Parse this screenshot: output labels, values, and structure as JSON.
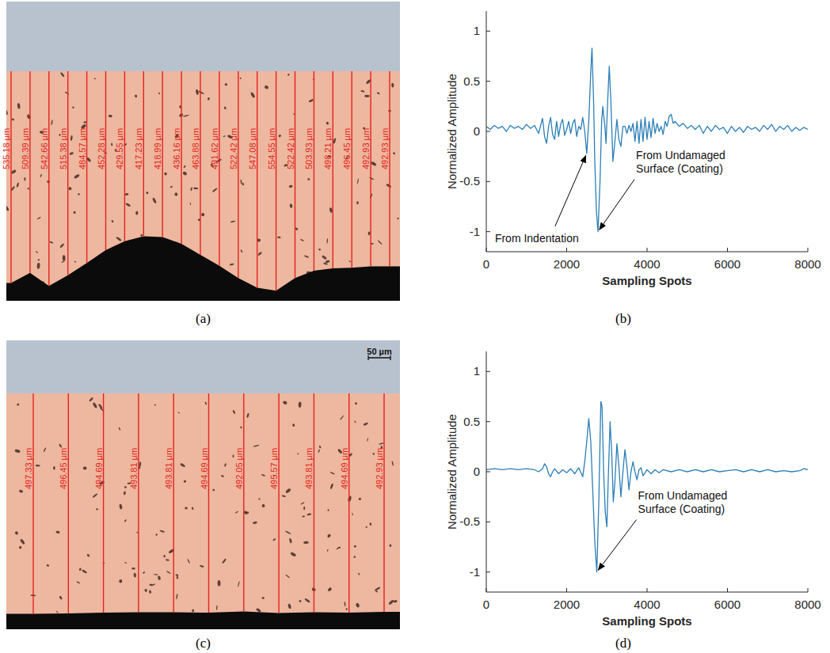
{
  "micrographs": [
    {
      "label": "(a)",
      "thicknesses": [
        {
          "value": 535.18,
          "label": "535.18 µm"
        },
        {
          "value": 509.39,
          "label": "509.39 µm"
        },
        {
          "value": 542.66,
          "label": "542.66 µm"
        },
        {
          "value": 515.38,
          "label": "515.38 µm"
        },
        {
          "value": 484.57,
          "label": "484.57 µm"
        },
        {
          "value": 452.28,
          "label": "452.28 µm"
        },
        {
          "value": 429.55,
          "label": "429.55 µm"
        },
        {
          "value": 417.23,
          "label": "417.23 µm"
        },
        {
          "value": 418.99,
          "label": "418.99 µm"
        },
        {
          "value": 436.16,
          "label": "436.16 µm"
        },
        {
          "value": 463.88,
          "label": "463.88 µm"
        },
        {
          "value": 491.62,
          "label": "491.62 µm"
        },
        {
          "value": 522.42,
          "label": "522.42 µm"
        },
        {
          "value": 547.08,
          "label": "547.08 µm"
        },
        {
          "value": 554.55,
          "label": "554.55 µm"
        },
        {
          "value": 522.42,
          "label": "522.42 µm"
        },
        {
          "value": 503.93,
          "label": "503.93 µm"
        },
        {
          "value": 498.21,
          "label": "498.21 µm"
        },
        {
          "value": 496.45,
          "label": "496.45 µm"
        },
        {
          "value": 492.93,
          "label": "492.93 µm"
        },
        {
          "value": 492.93,
          "label": "492.93 µm"
        }
      ]
    },
    {
      "label": "(c)",
      "scale_bar": {
        "value": 50,
        "label": "50 µm"
      },
      "thicknesses": [
        {
          "value": 497.33,
          "label": "497.33 µm"
        },
        {
          "value": 496.45,
          "label": "496.45 µm"
        },
        {
          "value": 494.69,
          "label": "494.69 µm"
        },
        {
          "value": 493.81,
          "label": "493.81 µm"
        },
        {
          "value": 493.81,
          "label": "493.81 µm"
        },
        {
          "value": 494.69,
          "label": "494.69 µm"
        },
        {
          "value": 492.05,
          "label": "492.05 µm"
        },
        {
          "value": 495.57,
          "label": "495.57 µm"
        },
        {
          "value": 493.81,
          "label": "493.81 µm"
        },
        {
          "value": 494.69,
          "label": "494.69 µm"
        },
        {
          "value": 492.93,
          "label": "492.93 µm"
        }
      ]
    }
  ],
  "chart_data": [
    {
      "type": "line",
      "label": "(b)",
      "x_label": "Sampling Spots",
      "y_label": "Normalized Amplitude",
      "xlim": [
        0,
        8000
      ],
      "xticks": [
        0,
        2000,
        4000,
        6000,
        8000
      ],
      "ylim": [
        -1.2,
        1.2
      ],
      "yticks": [
        -1,
        -0.5,
        0,
        0.5,
        1
      ],
      "grid": false,
      "x": [
        0,
        100,
        200,
        300,
        400,
        500,
        600,
        700,
        800,
        900,
        1000,
        1100,
        1200,
        1300,
        1400,
        1450,
        1500,
        1550,
        1600,
        1650,
        1700,
        1750,
        1800,
        1850,
        1900,
        1950,
        2000,
        2050,
        2100,
        2150,
        2200,
        2250,
        2300,
        2350,
        2400,
        2450,
        2500,
        2550,
        2600,
        2630,
        2670,
        2700,
        2740,
        2780,
        2830,
        2870,
        2900,
        2950,
        2980,
        3020,
        3060,
        3100,
        3150,
        3200,
        3250,
        3300,
        3350,
        3400,
        3450,
        3500,
        3550,
        3600,
        3650,
        3700,
        3750,
        3800,
        3850,
        3900,
        3950,
        4000,
        4050,
        4100,
        4150,
        4200,
        4250,
        4300,
        4350,
        4400,
        4450,
        4500,
        4550,
        4600,
        4650,
        4700,
        4800,
        4900,
        5000,
        5100,
        5200,
        5300,
        5400,
        5500,
        5600,
        5700,
        5800,
        5900,
        6000,
        6100,
        6200,
        6300,
        6400,
        6500,
        6600,
        6700,
        6800,
        6900,
        7000,
        7100,
        7200,
        7300,
        7400,
        7500,
        7600,
        7700,
        7800,
        7900,
        8000
      ],
      "series": [
        {
          "color": "#2c7fb8",
          "values": [
            0.05,
            0.02,
            0.06,
            0.03,
            0.05,
            0.0,
            0.06,
            0.03,
            0.05,
            0.02,
            0.07,
            0.03,
            0.06,
            -0.02,
            0.13,
            -0.05,
            -0.12,
            0.05,
            0.14,
            -0.03,
            -0.08,
            0.1,
            -0.05,
            0.07,
            0.12,
            -0.04,
            0.02,
            0.1,
            -0.02,
            0.08,
            0.12,
            -0.05,
            0.05,
            0.02,
            0.14,
            0.0,
            -0.22,
            0.1,
            0.6,
            0.83,
            0.3,
            -0.3,
            -0.8,
            -1.0,
            -0.5,
            0.1,
            0.25,
            0.05,
            -0.12,
            0.3,
            0.65,
            0.3,
            -0.3,
            -0.1,
            0.12,
            -0.08,
            -0.15,
            0.05,
            0.05,
            -0.02,
            0.06,
            0.0,
            0.08,
            -0.1,
            0.1,
            -0.12,
            0.12,
            -0.1,
            0.14,
            -0.08,
            0.1,
            -0.06,
            0.13,
            -0.02,
            0.08,
            0.0,
            0.05,
            -0.03,
            0.1,
            0.05,
            0.15,
            0.17,
            0.08,
            0.1,
            0.05,
            0.08,
            0.03,
            0.06,
            0.02,
            0.06,
            -0.02,
            0.05,
            0.0,
            0.06,
            0.02,
            0.04,
            -0.02,
            0.05,
            0.0,
            0.04,
            -0.01,
            0.05,
            0.02,
            0.04,
            0.0,
            0.06,
            0.02,
            0.07,
            0.0,
            0.05,
            0.02,
            0.06,
            0.0,
            0.04,
            0.01,
            0.04,
            0.02
          ]
        }
      ],
      "annotations": [
        {
          "text": "From Indentation",
          "point": [
            2500,
            -0.22
          ]
        },
        {
          "text": "From Undamaged Surface (Coating)",
          "point": [
            2780,
            -1.0
          ]
        }
      ]
    },
    {
      "type": "line",
      "label": "(d)",
      "x_label": "Sampling Spots",
      "y_label": "Normalized Amplitude",
      "xlim": [
        0,
        8000
      ],
      "xticks": [
        0,
        2000,
        4000,
        6000,
        8000
      ],
      "ylim": [
        -1.2,
        1.2
      ],
      "yticks": [
        -1,
        -0.5,
        0,
        0.5,
        1
      ],
      "grid": false,
      "x": [
        0,
        200,
        400,
        600,
        800,
        1000,
        1200,
        1300,
        1400,
        1450,
        1500,
        1550,
        1600,
        1650,
        1700,
        1800,
        1900,
        2000,
        2100,
        2200,
        2300,
        2400,
        2450,
        2500,
        2550,
        2600,
        2650,
        2700,
        2750,
        2800,
        2850,
        2880,
        2920,
        2960,
        3000,
        3040,
        3080,
        3120,
        3160,
        3200,
        3250,
        3300,
        3350,
        3400,
        3450,
        3500,
        3550,
        3600,
        3650,
        3700,
        3750,
        3800,
        3850,
        3900,
        4000,
        4100,
        4200,
        4300,
        4400,
        4600,
        4800,
        5000,
        5200,
        5400,
        5600,
        5800,
        6000,
        6200,
        6400,
        6600,
        6800,
        7000,
        7200,
        7400,
        7600,
        7800,
        7900,
        8000
      ],
      "series": [
        {
          "color": "#2c7fb8",
          "values": [
            0.02,
            0.03,
            0.02,
            0.03,
            0.02,
            0.03,
            0.02,
            0.0,
            0.03,
            0.08,
            0.05,
            -0.02,
            -0.05,
            0.0,
            0.03,
            -0.02,
            0.02,
            -0.01,
            0.03,
            -0.02,
            0.04,
            -0.05,
            0.1,
            0.3,
            0.53,
            0.3,
            -0.2,
            -0.7,
            -1.0,
            -0.3,
            0.7,
            0.65,
            0.0,
            -0.4,
            -0.55,
            0.0,
            0.5,
            0.2,
            -0.3,
            -0.1,
            0.28,
            0.05,
            -0.25,
            0.0,
            0.22,
            0.05,
            -0.18,
            0.0,
            0.1,
            0.0,
            -0.08,
            0.02,
            0.04,
            -0.04,
            0.02,
            -0.02,
            0.02,
            -0.01,
            0.02,
            0.0,
            0.02,
            0.0,
            0.02,
            0.0,
            0.02,
            0.0,
            0.01,
            0.02,
            0.0,
            0.02,
            0.0,
            0.02,
            0.0,
            0.01,
            0.0,
            0.01,
            0.03,
            0.02
          ]
        }
      ],
      "annotations": [
        {
          "text": "From Undamaged Surface (Coating)",
          "point": [
            2750,
            -1.0
          ]
        }
      ]
    }
  ]
}
